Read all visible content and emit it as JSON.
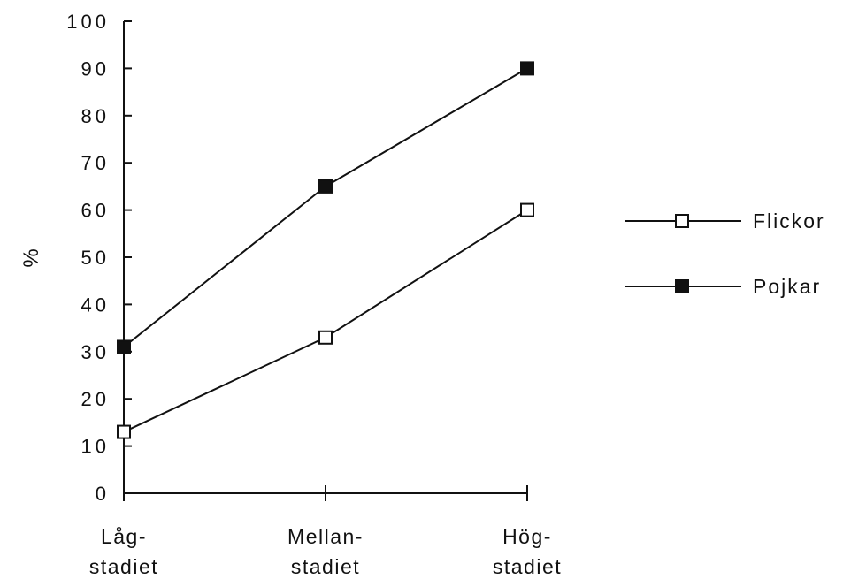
{
  "chart_data": {
    "type": "line",
    "categories": [
      [
        "Låg-",
        "stadiet"
      ],
      [
        "Mellan-",
        "stadiet"
      ],
      [
        "Hög-",
        "stadiet"
      ]
    ],
    "series": [
      {
        "name": "Flickor",
        "values": [
          13,
          33,
          60
        ],
        "marker": "open-square",
        "color": "#ffffff"
      },
      {
        "name": "Pojkar",
        "values": [
          31,
          65,
          90
        ],
        "marker": "filled-square",
        "color": "#111111"
      }
    ],
    "ylabel": "%",
    "xlabel": "",
    "ylim": [
      0,
      100
    ],
    "yticks": [
      0,
      10,
      20,
      30,
      40,
      50,
      60,
      70,
      80,
      90,
      100
    ],
    "grid": false,
    "legend_position": "right"
  }
}
